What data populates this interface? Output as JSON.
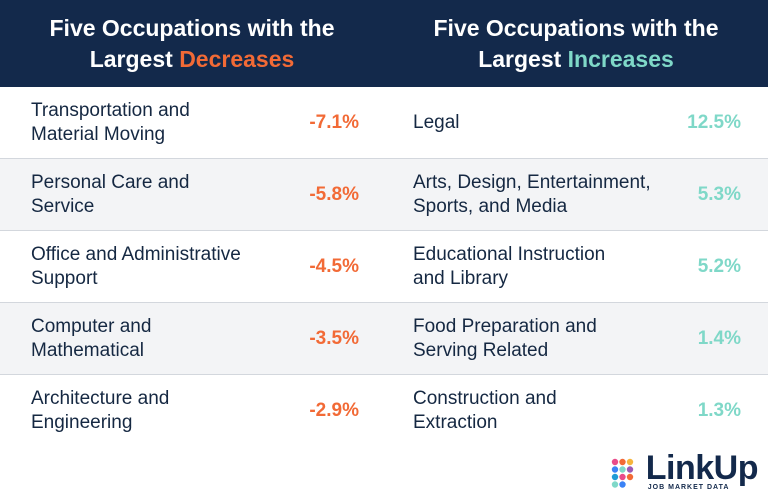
{
  "header": {
    "left_line1": "Five Occupations with the",
    "left_line2_prefix": "Largest ",
    "left_highlight": "Decreases",
    "right_line1": "Five Occupations with the",
    "right_line2_prefix": "Largest ",
    "right_highlight": "Increases"
  },
  "chart_data": {
    "type": "table",
    "columns": [
      "Five Occupations with the Largest Decreases",
      "Five Occupations with the Largest Increases"
    ],
    "decreases": [
      {
        "occupation": "Transportation and\nMaterial Moving",
        "value": "-7.1%"
      },
      {
        "occupation": "Personal Care and\nService",
        "value": "-5.8%"
      },
      {
        "occupation": "Office and Administrative\nSupport",
        "value": "-4.5%"
      },
      {
        "occupation": "Computer and\nMathematical",
        "value": "-3.5%"
      },
      {
        "occupation": "Architecture and\nEngineering",
        "value": "-2.9%"
      }
    ],
    "increases": [
      {
        "occupation": "Legal",
        "value": "12.5%"
      },
      {
        "occupation": "Arts, Design, Entertainment,\nSports, and Media",
        "value": "5.3%"
      },
      {
        "occupation": "Educational Instruction\nand Library",
        "value": "5.2%"
      },
      {
        "occupation": "Food Preparation and\nServing Related",
        "value": "1.4%"
      },
      {
        "occupation": "Construction and\nExtraction",
        "value": "1.3%"
      }
    ]
  },
  "colors": {
    "header_bg": "#13294b",
    "decrease": "#f26a36",
    "increase": "#7fd8c8",
    "row_shade": "#f3f4f6"
  },
  "logo": {
    "name": "LinkUp",
    "subtitle": "JOB MARKET DATA"
  }
}
